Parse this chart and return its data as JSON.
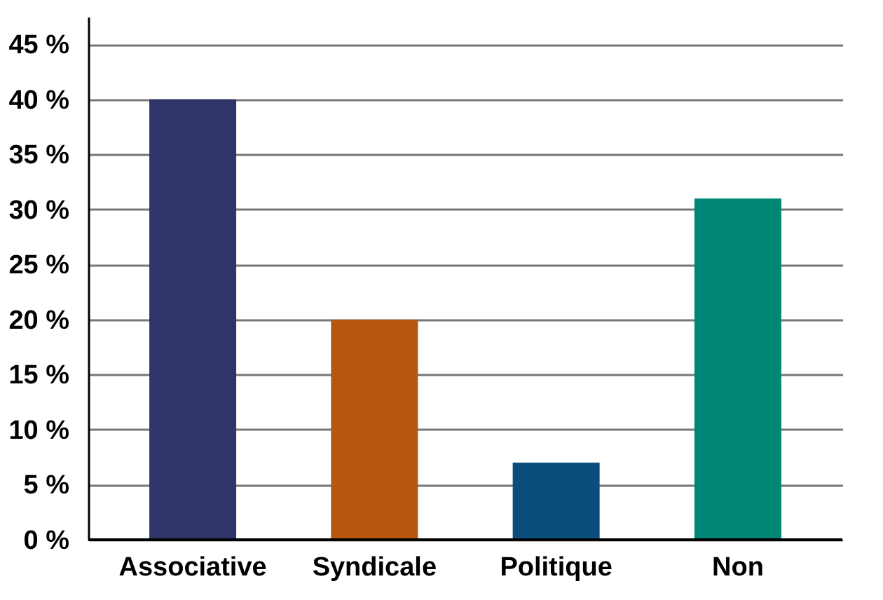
{
  "chart_data": {
    "type": "bar",
    "categories": [
      "Associative",
      "Syndicale",
      "Politique",
      "Non"
    ],
    "values": [
      40,
      20,
      7,
      31
    ],
    "colors": [
      "#2f3568",
      "#b5570e",
      "#0a4f7b",
      "#008674"
    ],
    "ylim": [
      0,
      47.5
    ],
    "yticks": [
      {
        "value": 0,
        "label": "0 %"
      },
      {
        "value": 5,
        "label": "5 %"
      },
      {
        "value": 10,
        "label": "10 %"
      },
      {
        "value": 15,
        "label": "15 %"
      },
      {
        "value": 20,
        "label": "20 %"
      },
      {
        "value": 25,
        "label": "25 %"
      },
      {
        "value": 30,
        "label": "30 %"
      },
      {
        "value": 35,
        "label": "35 %"
      },
      {
        "value": 40,
        "label": "40 %"
      },
      {
        "value": 45,
        "label": "45 %"
      }
    ],
    "grid": "y"
  }
}
